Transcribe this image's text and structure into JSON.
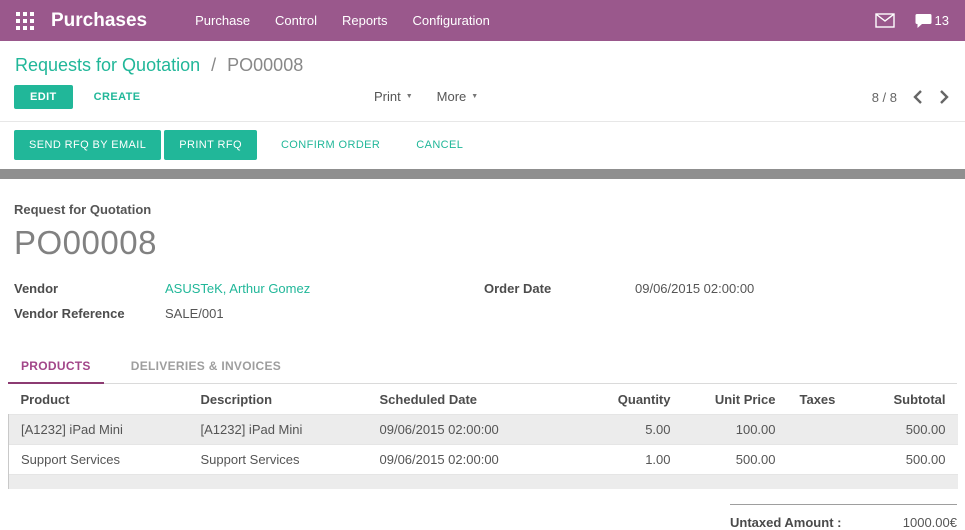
{
  "colors": {
    "topbar": "#9a588c",
    "accent": "#21b799",
    "tab_active": "#a24689",
    "gray_band": "#8f8f8f"
  },
  "icons": {
    "caret_down": "▼",
    "apps": "grid-3x3",
    "mail": "envelope",
    "messages": "chat-bubble",
    "pager_prev": "chevron-left",
    "pager_next": "chevron-right"
  },
  "topbar": {
    "title": "Purchases",
    "menus": [
      "Purchase",
      "Control",
      "Reports",
      "Configuration"
    ],
    "message_count": "13"
  },
  "breadcrumb": {
    "parent": "Requests for Quotation",
    "separator": "/",
    "current": "PO00008"
  },
  "control": {
    "edit": "EDIT",
    "create": "CREATE",
    "print": "Print",
    "more": "More",
    "pager_text": "8 / 8"
  },
  "statusbar": {
    "buttons": [
      {
        "label": "SEND RFQ BY EMAIL",
        "style": "primary"
      },
      {
        "label": "PRINT RFQ",
        "style": "primary"
      },
      {
        "label": "CONFIRM ORDER",
        "style": "flat"
      },
      {
        "label": "CANCEL",
        "style": "flat"
      }
    ]
  },
  "form": {
    "doc_type_label": "Request for Quotation",
    "doc_name": "PO00008",
    "fields": {
      "vendor": {
        "label": "Vendor",
        "value": "ASUSTeK, Arthur Gomez"
      },
      "vendor_reference": {
        "label": "Vendor Reference",
        "value": "SALE/001"
      },
      "order_date": {
        "label": "Order Date",
        "value": "09/06/2015 02:00:00"
      }
    },
    "tabs": [
      {
        "label": "PRODUCTS",
        "active": true
      },
      {
        "label": "DELIVERIES & INVOICES",
        "active": false
      }
    ],
    "table": {
      "headers": [
        "Product",
        "Description",
        "Scheduled Date",
        "Quantity",
        "Unit Price",
        "Taxes",
        "Subtotal"
      ],
      "rows": [
        [
          "[A1232] iPad Mini",
          "[A1232] iPad Mini",
          "09/06/2015 02:00:00",
          "5.00",
          "100.00",
          "",
          "500.00"
        ],
        [
          "Support Services",
          "Support Services",
          "09/06/2015 02:00:00",
          "1.00",
          "500.00",
          "",
          "500.00"
        ]
      ]
    },
    "totals": {
      "untaxed_label": "Untaxed Amount :",
      "untaxed_value": "1000.00€"
    }
  }
}
